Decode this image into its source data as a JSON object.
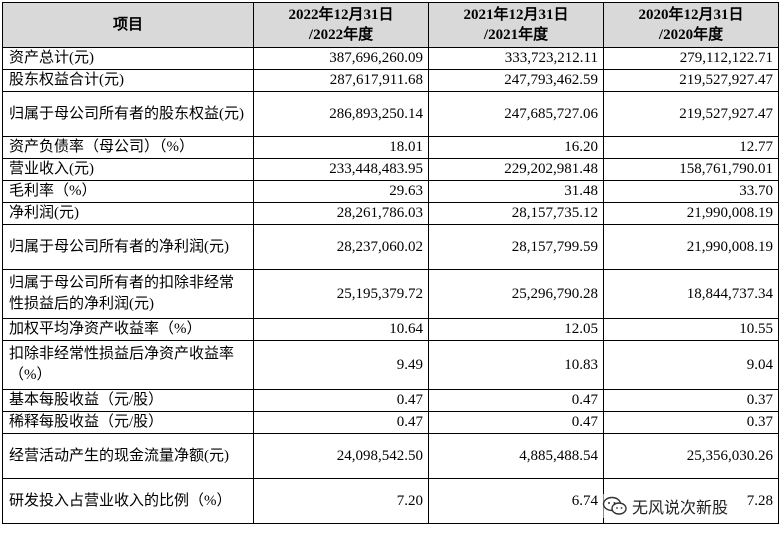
{
  "table": {
    "headers": [
      {
        "line1": "项目",
        "line2": ""
      },
      {
        "line1": "2022年12月31日",
        "line2": "/2022年度"
      },
      {
        "line1": "2021年12月31日",
        "line2": "/2021年度"
      },
      {
        "line1": "2020年12月31日",
        "line2": "/2020年度"
      }
    ],
    "rows": [
      {
        "label": "资产总计(元)",
        "v2022": "387,696,260.09",
        "v2021": "333,723,212.11",
        "v2020": "279,112,122.71"
      },
      {
        "label": "股东权益合计(元)",
        "v2022": "287,617,911.68",
        "v2021": "247,793,462.59",
        "v2020": "219,527,927.47"
      },
      {
        "label": "归属于母公司所有者的股东权益(元)",
        "v2022": "286,893,250.14",
        "v2021": "247,685,727.06",
        "v2020": "219,527,927.47"
      },
      {
        "label": "资产负债率（母公司）（%）",
        "v2022": "18.01",
        "v2021": "16.20",
        "v2020": "12.77"
      },
      {
        "label": "营业收入(元)",
        "v2022": "233,448,483.95",
        "v2021": "229,202,981.48",
        "v2020": "158,761,790.01"
      },
      {
        "label": "毛利率（%）",
        "v2022": "29.63",
        "v2021": "31.48",
        "v2020": "33.70"
      },
      {
        "label": "净利润(元)",
        "v2022": "28,261,786.03",
        "v2021": "28,157,735.12",
        "v2020": "21,990,008.19"
      },
      {
        "label": "归属于母公司所有者的净利润(元)",
        "v2022": "28,237,060.02",
        "v2021": "28,157,799.59",
        "v2020": "21,990,008.19"
      },
      {
        "label": "归属于母公司所有者的扣除非经常性损益后的净利润(元)",
        "v2022": "25,195,379.72",
        "v2021": "25,296,790.28",
        "v2020": "18,844,737.34"
      },
      {
        "label": "加权平均净资产收益率（%）",
        "v2022": "10.64",
        "v2021": "12.05",
        "v2020": "10.55"
      },
      {
        "label": "扣除非经常性损益后净资产收益率（%）",
        "v2022": "9.49",
        "v2021": "10.83",
        "v2020": "9.04"
      },
      {
        "label": "基本每股收益（元/股）",
        "v2022": "0.47",
        "v2021": "0.47",
        "v2020": "0.37"
      },
      {
        "label": "稀释每股收益（元/股）",
        "v2022": "0.47",
        "v2021": "0.47",
        "v2020": "0.37"
      },
      {
        "label": "经营活动产生的现金流量净额(元)",
        "v2022": "24,098,542.50",
        "v2021": "4,885,488.54",
        "v2020": "25,356,030.26"
      },
      {
        "label": "研发投入占营业收入的比例（%）",
        "v2022": "7.20",
        "v2021": "6.74",
        "v2020": "7.28"
      }
    ]
  },
  "watermark": {
    "text": "无风说次新股",
    "icon": "wechat-icon"
  }
}
